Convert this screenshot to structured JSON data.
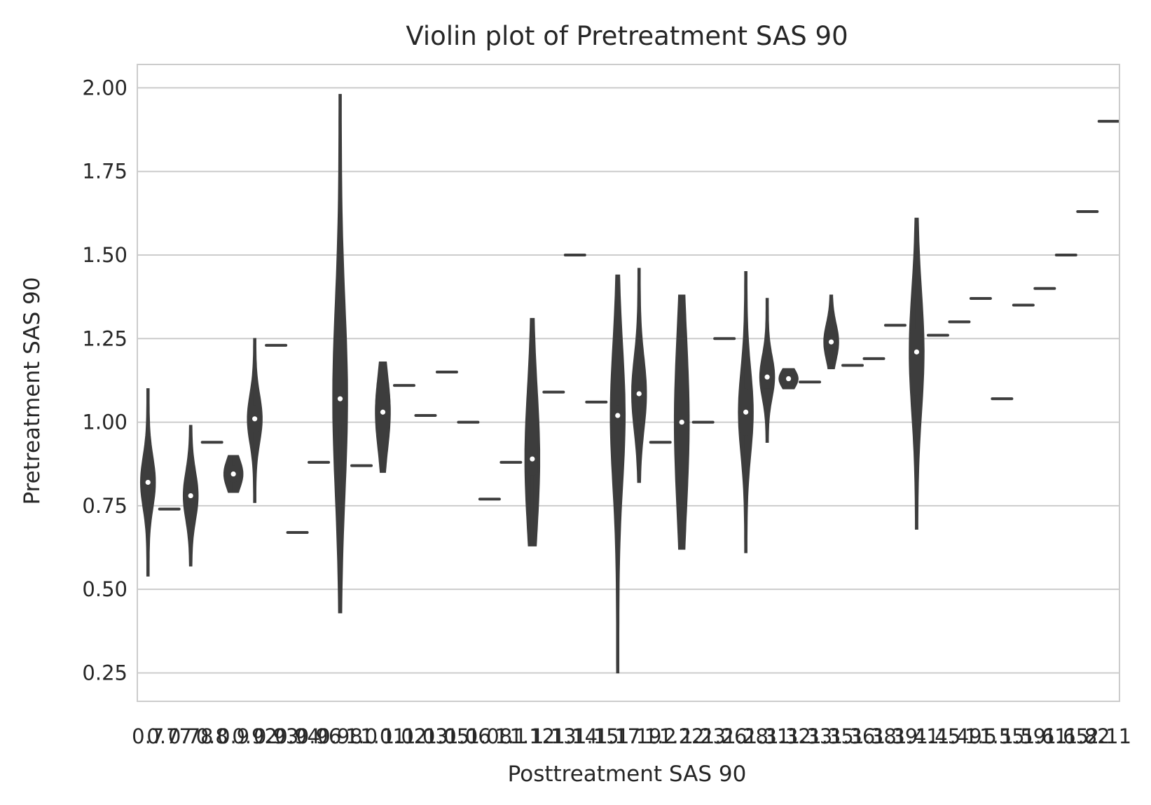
{
  "chart_data": {
    "type": "violin",
    "title": "Violin plot of Pretreatment SAS 90",
    "xlabel": "Posttreatment SAS 90",
    "ylabel": "Pretreatment SAS 90",
    "ylim": [
      0.165,
      2.07
    ],
    "yticks": [
      "0.25",
      "0.50",
      "0.75",
      "1.00",
      "1.25",
      "1.50",
      "1.75",
      "2.00"
    ],
    "ytick_values": [
      0.25,
      0.5,
      0.75,
      1.0,
      1.25,
      1.5,
      1.75,
      2.0
    ],
    "grid": "horizontal",
    "violin_color": "#3d3d3d",
    "grid_color": "#cccccc",
    "categories": [
      "0.7",
      "0.77",
      "0.78",
      "0.8",
      "0.9",
      "0.92",
      "0.93",
      "0.94",
      "0.96",
      "0.98",
      "1.0",
      "1.01",
      "1.02",
      "1.03",
      "1.05",
      "1.06",
      "1.08",
      "1.1",
      "1.12",
      "1.13",
      "1.14",
      "1.15",
      "1.17",
      "1.19",
      "1.2",
      "1.22",
      "1.23",
      "1.26",
      "1.28",
      "1.31",
      "1.32",
      "1.33",
      "1.35",
      "1.36",
      "1.38",
      "1.39",
      "1.41",
      "1.45",
      "1.49",
      "1.5",
      "1.55",
      "1.59",
      "1.61",
      "1.65",
      "1.82",
      "2.11"
    ],
    "violins": [
      {
        "min": 0.54,
        "max": 1.1,
        "q1": 0.78,
        "q3": 0.865,
        "median": 0.82
      },
      {
        "single": 0.74
      },
      {
        "min": 0.57,
        "max": 0.99,
        "q1": 0.74,
        "q3": 0.82,
        "median": 0.78
      },
      {
        "single": 0.94
      },
      {
        "min": 0.79,
        "max": 0.9,
        "q1": 0.82,
        "q3": 0.87,
        "median": 0.845
      },
      {
        "min": 0.76,
        "max": 1.25,
        "q1": 0.97,
        "q3": 1.05,
        "median": 1.01
      },
      {
        "single": 1.23
      },
      {
        "single": 0.67
      },
      {
        "single": 0.88
      },
      {
        "min": 0.43,
        "max": 1.98,
        "q1": 0.99,
        "q3": 1.3,
        "median": 1.07
      },
      {
        "single": 0.87
      },
      {
        "min": 0.85,
        "max": 1.18,
        "q1": 0.97,
        "q3": 1.09,
        "median": 1.03
      },
      {
        "single": 1.11
      },
      {
        "single": 1.02
      },
      {
        "single": 1.15
      },
      {
        "single": 1.0
      },
      {
        "single": 0.77
      },
      {
        "single": 0.88
      },
      {
        "min": 0.63,
        "max": 1.31,
        "q1": 0.84,
        "q3": 1.07,
        "median": 0.89
      },
      {
        "single": 1.09
      },
      {
        "single": 1.5
      },
      {
        "single": 1.06
      },
      {
        "min": 0.25,
        "max": 1.44,
        "q1": 0.82,
        "q3": 1.05,
        "median": 1.02
      },
      {
        "min": 0.82,
        "max": 1.46,
        "q1": 1.04,
        "q3": 1.16,
        "median": 1.085
      },
      {
        "single": 0.94
      },
      {
        "min": 0.62,
        "max": 1.38,
        "q1": 0.81,
        "q3": 1.09,
        "median": 1.0
      },
      {
        "single": 1.0
      },
      {
        "single": 1.25
      },
      {
        "min": 0.61,
        "max": 1.45,
        "q1": 0.96,
        "q3": 1.1,
        "median": 1.03
      },
      {
        "min": 0.94,
        "max": 1.37,
        "q1": 1.1,
        "q3": 1.17,
        "median": 1.135
      },
      {
        "min": 1.1,
        "max": 1.16,
        "q1": 1.115,
        "q3": 1.145,
        "median": 1.13
      },
      {
        "single": 1.12
      },
      {
        "min": 1.16,
        "max": 1.38,
        "q1": 1.22,
        "q3": 1.28,
        "median": 1.24
      },
      {
        "single": 1.17
      },
      {
        "single": 1.19
      },
      {
        "single": 1.29
      },
      {
        "min": 0.68,
        "max": 1.61,
        "q1": 1.08,
        "q3": 1.28,
        "median": 1.21
      },
      {
        "single": 1.26
      },
      {
        "single": 1.3
      },
      {
        "single": 1.37
      },
      {
        "single": 1.07
      },
      {
        "single": 1.35
      },
      {
        "single": 1.4
      },
      {
        "single": 1.5
      },
      {
        "single": 1.63
      },
      {
        "single": 1.9
      }
    ]
  }
}
